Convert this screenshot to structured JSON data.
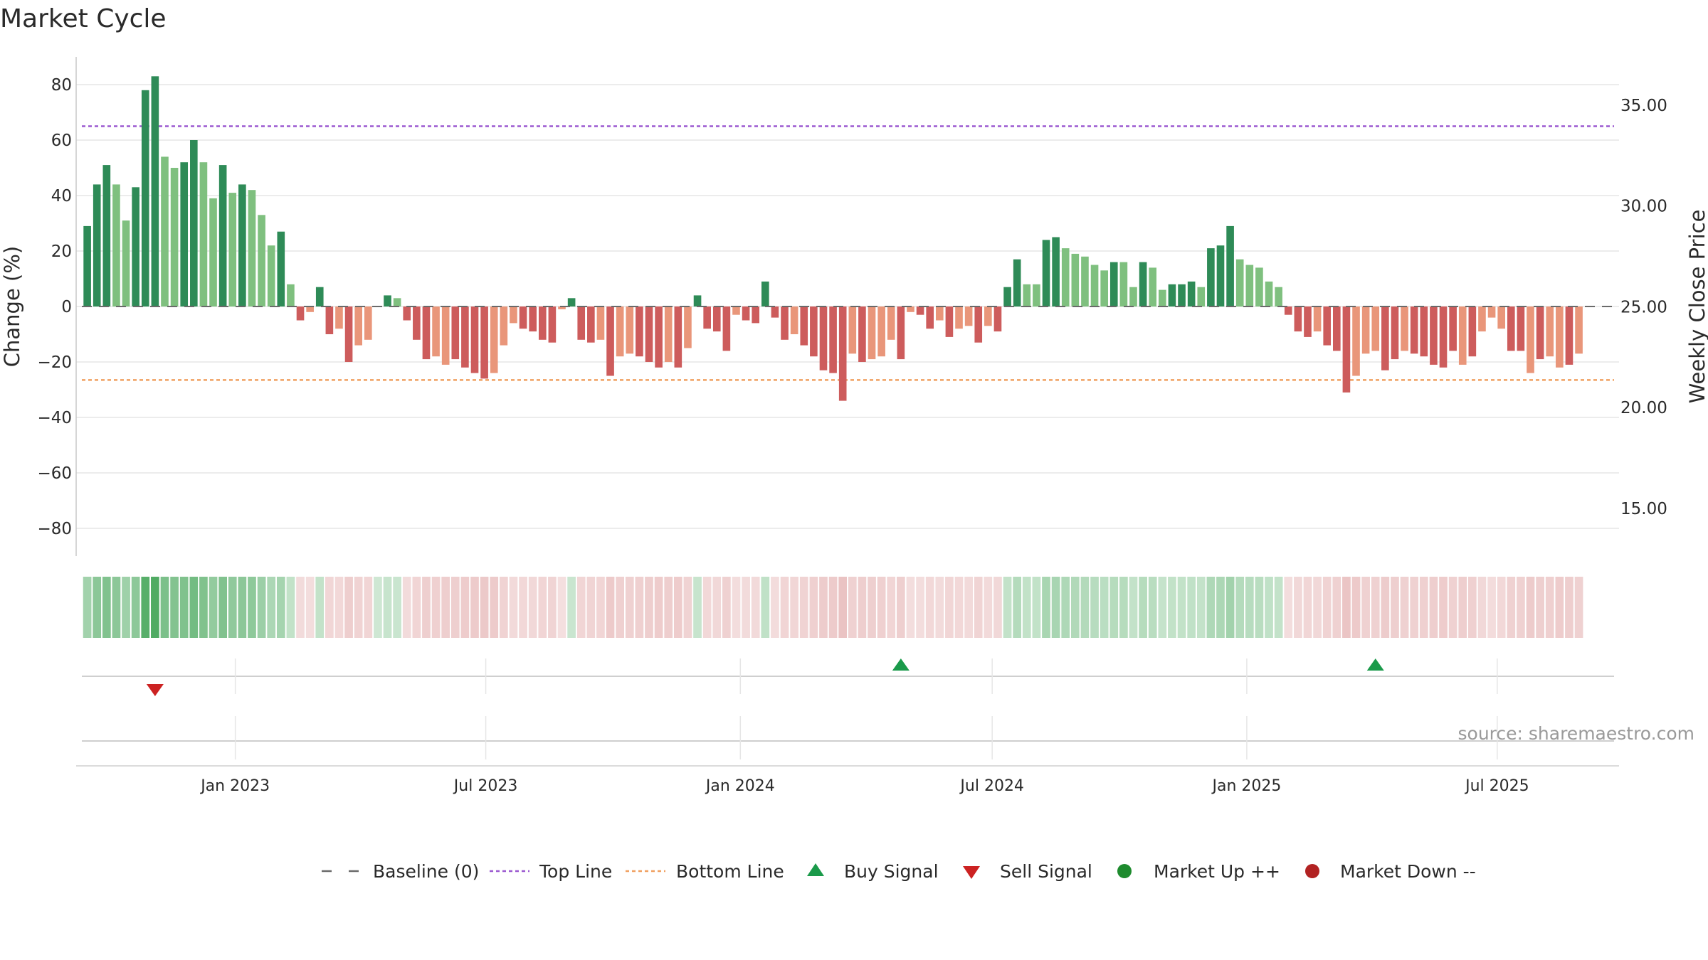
{
  "page": {
    "title": "Market Cycle",
    "source": "source: sharemaestro.com"
  },
  "colors": {
    "up_strong": "#2e8b57",
    "up_light": "#7fc07f",
    "down_strong": "#cd5c5c",
    "down_light": "#e9967a",
    "top_line": "#9b59d0",
    "bottom_line": "#f0a060",
    "baseline": "#6a6a6a",
    "buy": "#1a9a4a",
    "sell": "#cc2222",
    "market_up": "#1e8b2e",
    "market_down": "#b22222",
    "grid": "#e6e6e6"
  },
  "legend": [
    {
      "label": "Baseline (0)",
      "icon": "dash-line-icon"
    },
    {
      "label": "Top Line",
      "icon": "dotted-purple-line-icon"
    },
    {
      "label": "Bottom Line",
      "icon": "dotted-orange-line-icon"
    },
    {
      "label": "Buy Signal",
      "icon": "triangle-up-icon"
    },
    {
      "label": "Sell Signal",
      "icon": "triangle-down-icon"
    },
    {
      "label": "Market Up ++",
      "icon": "green-dot-icon"
    },
    {
      "label": "Market Down --",
      "icon": "red-dot-icon"
    }
  ],
  "chart_data": {
    "type": "bar",
    "title": "Market Cycle",
    "ylabel": "Change (%)",
    "y2label": "Weekly Close Price",
    "ylim": [
      -90,
      90
    ],
    "yticks": [
      80,
      60,
      40,
      20,
      0,
      -20,
      -40,
      -60,
      -80
    ],
    "y2lim": [
      12.63,
      37.39
    ],
    "y2ticks": [
      "35.00",
      "30.00",
      "25.00",
      "20.00",
      "15.00"
    ],
    "xlim": [
      "2022-09-09",
      "2025-09-26"
    ],
    "xticks": [
      {
        "label": "Jan 2023",
        "date": "2023-01-01"
      },
      {
        "label": "Jul 2023",
        "date": "2023-07-01"
      },
      {
        "label": "Jan 2024",
        "date": "2024-01-01"
      },
      {
        "label": "Jul 2024",
        "date": "2024-07-01"
      },
      {
        "label": "Jan 2025",
        "date": "2025-01-01"
      },
      {
        "label": "Jul 2025",
        "date": "2025-07-01"
      }
    ],
    "grid": true,
    "legend_position": "bottom",
    "start_week": "2022-09-16",
    "week_step_days": 7,
    "top_line": 65,
    "bottom_line": -26.5,
    "baseline": 0,
    "values": [
      29,
      44,
      51,
      44,
      31,
      43,
      78,
      83,
      54,
      50,
      52,
      60,
      52,
      39,
      51,
      41,
      44,
      42,
      33,
      22,
      27,
      8,
      -5,
      -2,
      7,
      -10,
      -8,
      -20,
      -14,
      -12,
      0,
      4,
      3,
      -5,
      -12,
      -19,
      -18,
      -21,
      -19,
      -22,
      -24,
      -26,
      -24,
      -14,
      -6,
      -8,
      -9,
      -12,
      -13,
      -1,
      3,
      -12,
      -13,
      -12,
      -25,
      -18,
      -17,
      -18,
      -20,
      -22,
      -20,
      -22,
      -15,
      4,
      -8,
      -9,
      -16,
      -3,
      -5,
      -6,
      9,
      -4,
      -12,
      -10,
      -14,
      -18,
      -23,
      -24,
      -34,
      -17,
      -20,
      -19,
      -18,
      -12,
      -19,
      -2,
      -3,
      -8,
      -5,
      -11,
      -8,
      -7,
      -13,
      -7,
      -9,
      7,
      17,
      8,
      8,
      24,
      25,
      21,
      19,
      18,
      15,
      13,
      16,
      16,
      7,
      16,
      14,
      6,
      8,
      8,
      9,
      7,
      21,
      22,
      29,
      17,
      15,
      14,
      9,
      7,
      -3,
      -9,
      -11,
      -9,
      -14,
      -16,
      -31,
      -25,
      -17,
      -16,
      -23,
      -19,
      -16,
      -17,
      -18,
      -21,
      -22,
      -16,
      -21,
      -18,
      -9,
      -4,
      -8,
      -16,
      -16,
      -24,
      -19,
      -18,
      -22,
      -21,
      -17
    ],
    "strong_flags": [
      1,
      1,
      1,
      0,
      0,
      1,
      1,
      1,
      0,
      0,
      1,
      1,
      0,
      0,
      1,
      0,
      1,
      0,
      0,
      0,
      1,
      0,
      1,
      0,
      1,
      1,
      0,
      1,
      0,
      0,
      0,
      1,
      0,
      1,
      1,
      1,
      0,
      0,
      1,
      1,
      1,
      1,
      0,
      0,
      0,
      1,
      1,
      1,
      1,
      0,
      1,
      1,
      1,
      0,
      1,
      0,
      0,
      1,
      1,
      1,
      0,
      1,
      0,
      1,
      1,
      1,
      1,
      0,
      1,
      1,
      1,
      1,
      1,
      0,
      1,
      1,
      1,
      1,
      1,
      0,
      1,
      0,
      0,
      0,
      1,
      0,
      1,
      1,
      0,
      1,
      0,
      0,
      1,
      0,
      1,
      1,
      1,
      0,
      0,
      1,
      1,
      0,
      0,
      0,
      0,
      0,
      1,
      0,
      0,
      1,
      0,
      0,
      1,
      1,
      1,
      0,
      1,
      1,
      1,
      0,
      0,
      0,
      0,
      0,
      1,
      1,
      1,
      0,
      1,
      1,
      1,
      0,
      0,
      0,
      1,
      1,
      0,
      1,
      1,
      1,
      1,
      1,
      0,
      1,
      0,
      0,
      0,
      1,
      1,
      0,
      1,
      0,
      0,
      1,
      0
    ],
    "buy_signals": [
      "2024-04-26",
      "2025-04-04"
    ],
    "sell_signals": [
      "2022-11-04"
    ]
  }
}
